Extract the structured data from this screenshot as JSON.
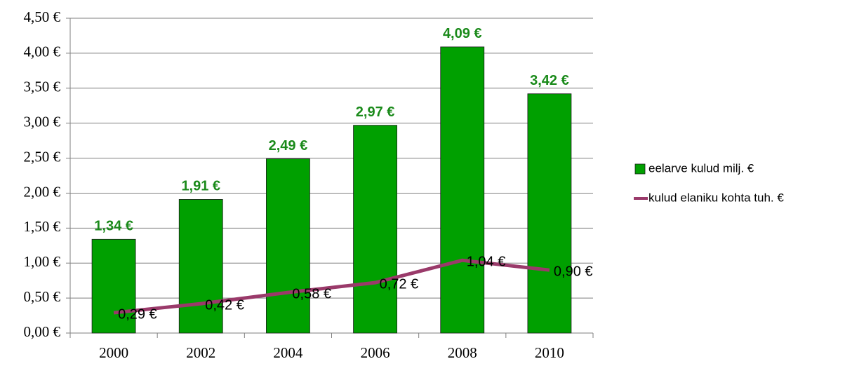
{
  "chart_data": {
    "type": "bar",
    "categories": [
      "2000",
      "2002",
      "2004",
      "2006",
      "2008",
      "2010"
    ],
    "series": [
      {
        "name": "eelarve kulud milj. €",
        "type": "bar",
        "color": "#00a000",
        "label_color": "#1a8a1a",
        "values": [
          1.34,
          1.91,
          2.49,
          2.97,
          4.09,
          3.42
        ],
        "value_labels": [
          "1,34 €",
          "1,91 €",
          "2,49 €",
          "2,97 €",
          "4,09 €",
          "3,42 €"
        ]
      },
      {
        "name": "kulud elaniku kohta tuh. €",
        "type": "line",
        "color": "#9a3a6a",
        "label_color": "#000000",
        "values": [
          0.29,
          0.42,
          0.58,
          0.72,
          1.04,
          0.9
        ],
        "value_labels": [
          "0,29 €",
          "0,42 €",
          "0,58 €",
          "0,72 €",
          "1,04 €",
          "0,90 €"
        ]
      }
    ],
    "ylim": [
      0,
      4.5
    ],
    "yticks": [
      {
        "value": 0,
        "label": "0,00 €"
      },
      {
        "value": 0.5,
        "label": "0,50 €"
      },
      {
        "value": 1,
        "label": "1,00 €"
      },
      {
        "value": 1.5,
        "label": "1,50 €"
      },
      {
        "value": 2,
        "label": "2,00 €"
      },
      {
        "value": 2.5,
        "label": "2,50 €"
      },
      {
        "value": 3,
        "label": "3,00 €"
      },
      {
        "value": 3.5,
        "label": "3,50 €"
      },
      {
        "value": 4,
        "label": "4,00 €"
      },
      {
        "value": 4.5,
        "label": "4,50 €"
      }
    ],
    "grid": true,
    "legend": "right"
  }
}
